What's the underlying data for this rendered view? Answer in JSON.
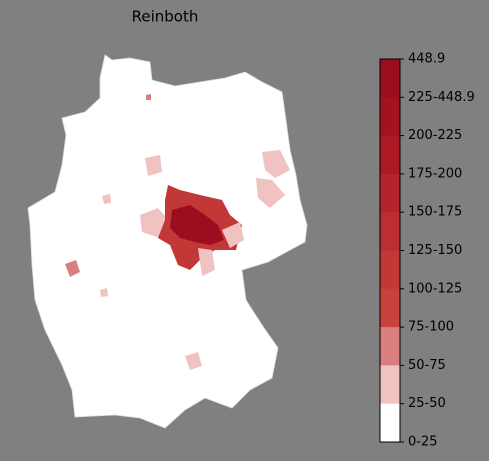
{
  "title": "Reinboth",
  "colorbar": {
    "labels": [
      "448.9",
      "225-448.9",
      "200-225",
      "175-200",
      "150-175",
      "125-150",
      "100-125",
      "75-100",
      "50-75",
      "25-50",
      "0-25"
    ],
    "colors": [
      "#9b0d1f",
      "#a5121f",
      "#ae1a24",
      "#b5242a",
      "#bc2e30",
      "#c23836",
      "#c8423d",
      "#d97f7f",
      "#f0c2c2",
      "#ffffff"
    ]
  }
}
